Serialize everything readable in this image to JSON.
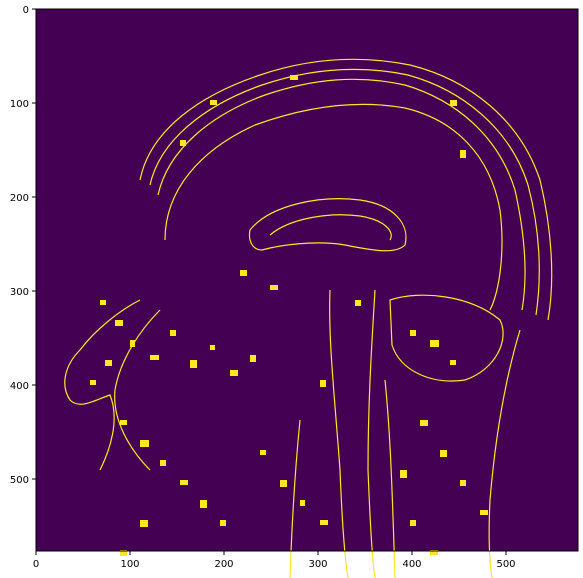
{
  "figure": {
    "description_colors": {
      "background": "#440154",
      "edges": "#fde725"
    },
    "x_ticks": [
      0,
      100,
      200,
      300,
      400,
      500
    ],
    "y_ticks": [
      0,
      100,
      200,
      300,
      400,
      500
    ],
    "x_range": [
      0,
      576
    ],
    "y_range": [
      576,
      0
    ]
  }
}
